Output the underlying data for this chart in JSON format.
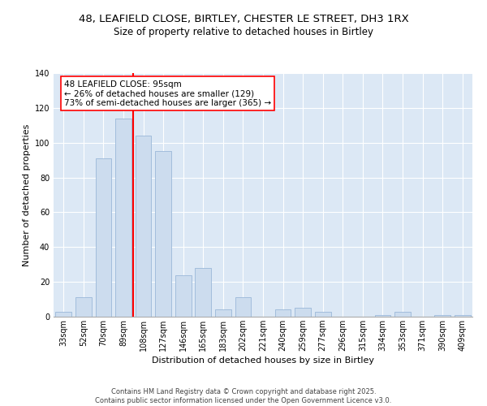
{
  "title_line1": "48, LEAFIELD CLOSE, BIRTLEY, CHESTER LE STREET, DH3 1RX",
  "title_line2": "Size of property relative to detached houses in Birtley",
  "xlabel": "Distribution of detached houses by size in Birtley",
  "ylabel": "Number of detached properties",
  "categories": [
    "33sqm",
    "52sqm",
    "70sqm",
    "89sqm",
    "108sqm",
    "127sqm",
    "146sqm",
    "165sqm",
    "183sqm",
    "202sqm",
    "221sqm",
    "240sqm",
    "259sqm",
    "277sqm",
    "296sqm",
    "315sqm",
    "334sqm",
    "353sqm",
    "371sqm",
    "390sqm",
    "409sqm"
  ],
  "values": [
    3,
    11,
    91,
    114,
    104,
    95,
    24,
    28,
    4,
    11,
    0,
    4,
    5,
    3,
    0,
    0,
    1,
    3,
    0,
    1,
    1
  ],
  "bar_color": "#ccdcee",
  "bar_edge_color": "#9ab8d8",
  "vline_color": "red",
  "vline_x": 3.5,
  "annotation_text": "48 LEAFIELD CLOSE: 95sqm\n← 26% of detached houses are smaller (129)\n73% of semi-detached houses are larger (365) →",
  "annotation_box_color": "white",
  "annotation_box_edge": "red",
  "ylim": [
    0,
    140
  ],
  "yticks": [
    0,
    20,
    40,
    60,
    80,
    100,
    120,
    140
  ],
  "background_color": "#dce8f5",
  "footer_text": "Contains HM Land Registry data © Crown copyright and database right 2025.\nContains public sector information licensed under the Open Government Licence v3.0.",
  "title_fontsize": 9.5,
  "subtitle_fontsize": 8.5,
  "axis_label_fontsize": 8,
  "tick_fontsize": 7,
  "annotation_fontsize": 7.5,
  "footer_fontsize": 6
}
